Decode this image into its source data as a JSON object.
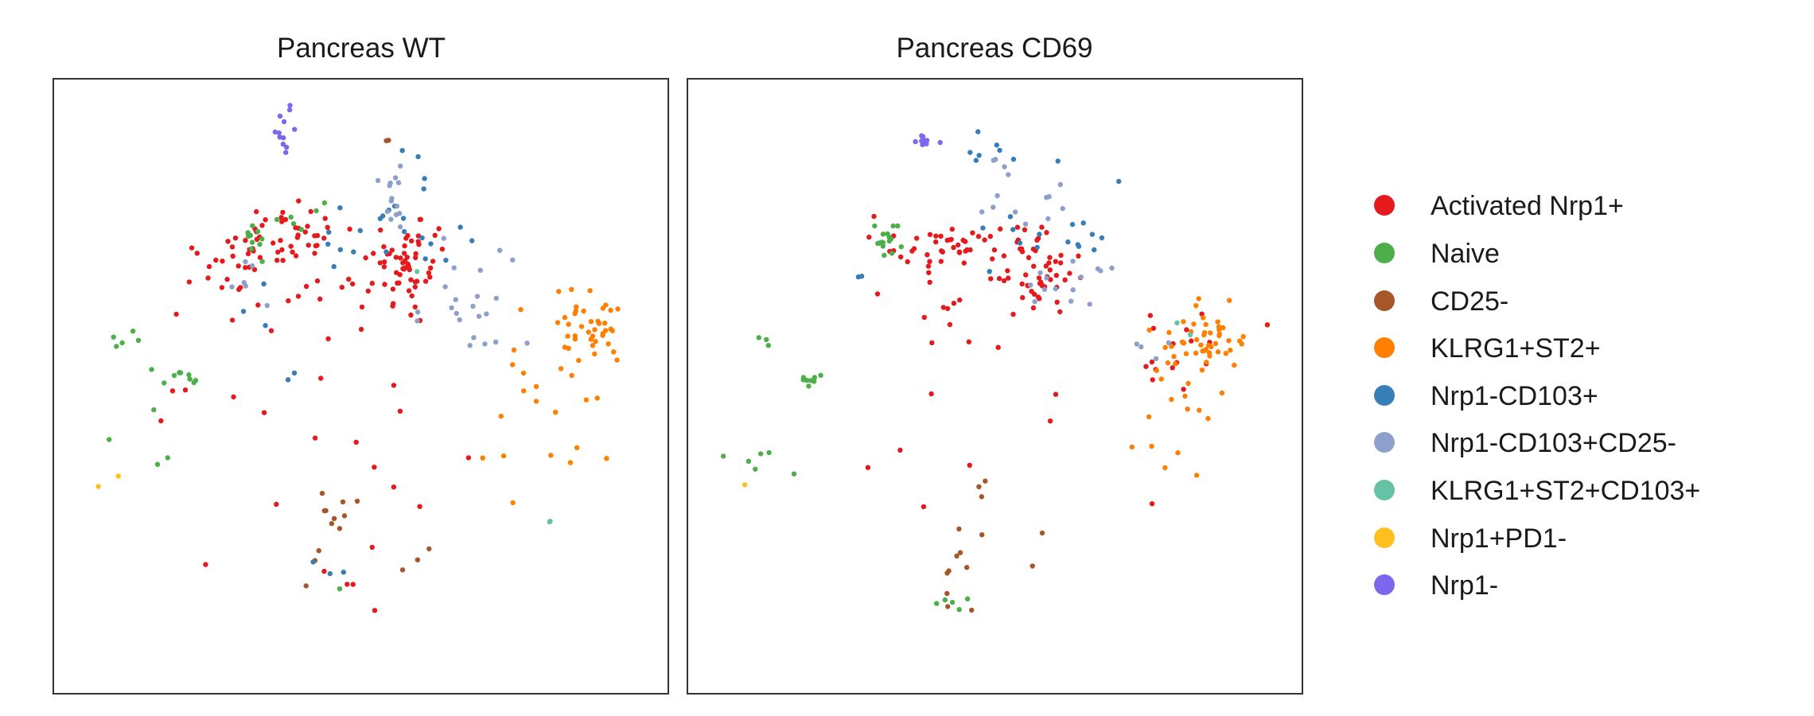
{
  "legend": {
    "entries": [
      {
        "label": "Activated Nrp1+",
        "color": "#e41a1c"
      },
      {
        "label": "Naive",
        "color": "#4daf4a"
      },
      {
        "label": "CD25-",
        "color": "#a65628"
      },
      {
        "label": "KLRG1+ST2+",
        "color": "#ff7f00"
      },
      {
        "label": "Nrp1-CD103+",
        "color": "#377eb8"
      },
      {
        "label": "Nrp1-CD103+CD25-",
        "color": "#8da0cb"
      },
      {
        "label": "KLRG1+ST2+CD103+",
        "color": "#66c2a5"
      },
      {
        "label": "Nrp1+PD1-",
        "color": "#ffbf1f"
      },
      {
        "label": "Nrp1-",
        "color": "#7b68ee"
      }
    ]
  },
  "chart_data": [
    {
      "type": "scatter",
      "title": "Pancreas WT",
      "xlabel": "",
      "ylabel": "",
      "xlim": [
        0,
        100
      ],
      "ylim": [
        0,
        100
      ],
      "grid": false,
      "axis_ticks": false,
      "series": [
        {
          "name": "Activated Nrp1+",
          "clusters": [
            {
              "cx": 37,
              "cy": 74,
              "sx": 6,
              "sy": 2.5,
              "n": 45
            },
            {
              "cx": 28,
              "cy": 70,
              "sx": 4,
              "sy": 3,
              "n": 20
            },
            {
              "cx": 58,
              "cy": 70,
              "sx": 3,
              "sy": 3.5,
              "n": 60
            },
            {
              "cx": 45,
              "cy": 65,
              "sx": 6,
              "sy": 3,
              "n": 10
            },
            {
              "cx": 40,
              "cy": 45,
              "sx": 14,
              "sy": 10,
              "n": 25
            }
          ]
        },
        {
          "name": "Naive",
          "clusters": [
            {
              "cx": 32,
              "cy": 74,
              "sx": 1.2,
              "sy": 2,
              "n": 10
            },
            {
              "cx": 41,
              "cy": 77,
              "sx": 3,
              "sy": 1.2,
              "n": 6
            },
            {
              "cx": 21,
              "cy": 51,
              "sx": 1,
              "sy": 0.8,
              "n": 8
            },
            {
              "cx": 12,
              "cy": 58,
              "sx": 1,
              "sy": 1.5,
              "n": 5
            },
            {
              "cx": 14,
              "cy": 40,
              "sx": 5,
              "sy": 5,
              "n": 6
            },
            {
              "cx": 46,
              "cy": 15,
              "sx": 1,
              "sy": 1,
              "n": 1
            }
          ]
        },
        {
          "name": "CD25-",
          "clusters": [
            {
              "cx": 45,
              "cy": 29,
              "sx": 2,
              "sy": 4,
              "n": 12
            },
            {
              "cx": 60,
              "cy": 21,
              "sx": 3,
              "sy": 1,
              "n": 3
            },
            {
              "cx": 54,
              "cy": 90,
              "sx": 0.5,
              "sy": 0.5,
              "n": 2
            }
          ]
        },
        {
          "name": "KLRG1+ST2+",
          "clusters": [
            {
              "cx": 87,
              "cy": 59,
              "sx": 3.5,
              "sy": 3,
              "n": 40
            },
            {
              "cx": 80,
              "cy": 47,
              "sx": 6,
              "sy": 7,
              "n": 15
            },
            {
              "cx": 82,
              "cy": 35,
              "sx": 5,
              "sy": 3,
              "n": 5
            }
          ]
        },
        {
          "name": "Nrp1-CD103+",
          "clusters": [
            {
              "cx": 55,
              "cy": 75,
              "sx": 6,
              "sy": 3,
              "n": 20
            },
            {
              "cx": 60,
              "cy": 84,
              "sx": 4,
              "sy": 4,
              "n": 4
            },
            {
              "cx": 34,
              "cy": 56,
              "sx": 5,
              "sy": 6,
              "n": 5
            },
            {
              "cx": 50,
              "cy": 21,
              "sx": 9,
              "sy": 1.5,
              "n": 3
            }
          ]
        },
        {
          "name": "Nrp1-CD103+CD25-",
          "clusters": [
            {
              "cx": 56,
              "cy": 82,
              "sx": 2,
              "sy": 3,
              "n": 14
            },
            {
              "cx": 68,
              "cy": 64,
              "sx": 6,
              "sy": 5,
              "n": 22
            },
            {
              "cx": 31,
              "cy": 67,
              "sx": 2,
              "sy": 2,
              "n": 6
            }
          ]
        },
        {
          "name": "KLRG1+ST2+CD103+",
          "clusters": [
            {
              "cx": 81,
              "cy": 28,
              "sx": 0.5,
              "sy": 0.5,
              "n": 2
            },
            {
              "cx": 60,
              "cy": 70,
              "sx": 1,
              "sy": 1,
              "n": 1
            }
          ]
        },
        {
          "name": "Nrp1+PD1-",
          "clusters": [
            {
              "cx": 10,
              "cy": 35,
              "sx": 3,
              "sy": 0.5,
              "n": 2
            }
          ]
        },
        {
          "name": "Nrp1-",
          "clusters": [
            {
              "cx": 37.5,
              "cy": 91.5,
              "sx": 0.8,
              "sy": 2,
              "n": 12
            }
          ]
        }
      ]
    },
    {
      "type": "scatter",
      "title": "Pancreas CD69",
      "xlabel": "",
      "ylabel": "",
      "xlim": [
        0,
        100
      ],
      "ylim": [
        0,
        100
      ],
      "grid": false,
      "axis_ticks": false,
      "series": [
        {
          "name": "Activated Nrp1+",
          "clusters": [
            {
              "cx": 43,
              "cy": 73,
              "sx": 6,
              "sy": 1.5,
              "n": 45
            },
            {
              "cx": 58,
              "cy": 69,
              "sx": 2.5,
              "sy": 3,
              "n": 45
            },
            {
              "cx": 42,
              "cy": 63,
              "sx": 10,
              "sy": 4,
              "n": 15
            },
            {
              "cx": 46,
              "cy": 46,
              "sx": 15,
              "sy": 10,
              "n": 12
            },
            {
              "cx": 82,
              "cy": 56,
              "sx": 5,
              "sy": 3,
              "n": 15
            }
          ]
        },
        {
          "name": "Naive",
          "clusters": [
            {
              "cx": 32,
              "cy": 74,
              "sx": 1.5,
              "sy": 1.5,
              "n": 16
            },
            {
              "cx": 20,
              "cy": 51,
              "sx": 1,
              "sy": 0.7,
              "n": 8
            },
            {
              "cx": 12,
              "cy": 57,
              "sx": 1,
              "sy": 1,
              "n": 3
            },
            {
              "cx": 14,
              "cy": 37,
              "sx": 4,
              "sy": 3,
              "n": 6
            },
            {
              "cx": 43,
              "cy": 15,
              "sx": 1.5,
              "sy": 0.8,
              "n": 5
            }
          ]
        },
        {
          "name": "CD25-",
          "clusters": [
            {
              "cx": 44,
              "cy": 20,
              "sx": 2,
              "sy": 4,
              "n": 10
            },
            {
              "cx": 48,
              "cy": 33,
              "sx": 3,
              "sy": 1,
              "n": 3
            },
            {
              "cx": 57,
              "cy": 23,
              "sx": 1,
              "sy": 2,
              "n": 2
            }
          ]
        },
        {
          "name": "KLRG1+ST2+",
          "clusters": [
            {
              "cx": 84,
              "cy": 58,
              "sx": 3.5,
              "sy": 3,
              "n": 50
            },
            {
              "cx": 77,
              "cy": 48,
              "sx": 4,
              "sy": 4,
              "n": 12
            },
            {
              "cx": 80,
              "cy": 37,
              "sx": 3,
              "sy": 2,
              "n": 3
            }
          ]
        },
        {
          "name": "Nrp1-CD103+",
          "clusters": [
            {
              "cx": 58,
              "cy": 76,
              "sx": 6,
              "sy": 3,
              "n": 16
            },
            {
              "cx": 50,
              "cy": 88,
              "sx": 8,
              "sy": 3,
              "n": 8
            },
            {
              "cx": 28,
              "cy": 67,
              "sx": 1,
              "sy": 1,
              "n": 2
            }
          ]
        },
        {
          "name": "Nrp1-CD103+CD25-",
          "clusters": [
            {
              "cx": 53,
              "cy": 83,
              "sx": 4,
              "sy": 4,
              "n": 14
            },
            {
              "cx": 62,
              "cy": 67,
              "sx": 4,
              "sy": 3,
              "n": 14
            },
            {
              "cx": 75,
              "cy": 56,
              "sx": 2,
              "sy": 2,
              "n": 4
            }
          ]
        },
        {
          "name": "KLRG1+ST2+CD103+",
          "clusters": [
            {
              "cx": 83,
              "cy": 58,
              "sx": 2,
              "sy": 2,
              "n": 2
            }
          ]
        },
        {
          "name": "Nrp1+PD1-",
          "clusters": [
            {
              "cx": 9.5,
              "cy": 34,
              "sx": 0.3,
              "sy": 0.3,
              "n": 1
            }
          ]
        },
        {
          "name": "Nrp1-",
          "clusters": [
            {
              "cx": 38.5,
              "cy": 90,
              "sx": 1.2,
              "sy": 1,
              "n": 10
            }
          ]
        }
      ]
    }
  ]
}
